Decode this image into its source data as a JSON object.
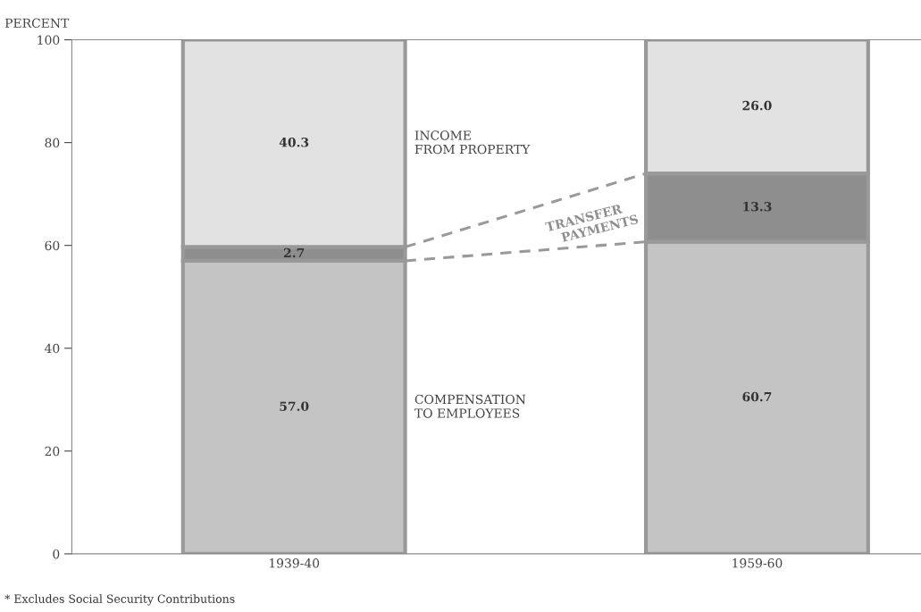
{
  "chart_data": {
    "type": "bar",
    "stacked": true,
    "ylabel": "PERCENT",
    "categories": [
      "1939-40",
      "1959-60"
    ],
    "series": [
      {
        "name": "COMPENSATION\nTO EMPLOYEES",
        "color": "#c4c4c4",
        "values": [
          57.0,
          60.7
        ],
        "value_labels": [
          "57.0",
          "60.7"
        ]
      },
      {
        "name": "TRANSFER\nPAYMENTS",
        "color": "#8e8e8e",
        "values": [
          2.7,
          13.3
        ],
        "value_labels": [
          "2.7",
          "13.3"
        ]
      },
      {
        "name": "INCOME\nFROM PROPERTY",
        "color": "#e2e2e2",
        "values": [
          40.3,
          26.0
        ],
        "value_labels": [
          "40.3",
          "26.0"
        ]
      }
    ],
    "ylim": [
      0,
      100
    ],
    "yticks": [
      0,
      20,
      40,
      60,
      80,
      100
    ],
    "grid": false,
    "legend": false,
    "annotations": [
      "* Excludes Social Security Contributions"
    ]
  }
}
